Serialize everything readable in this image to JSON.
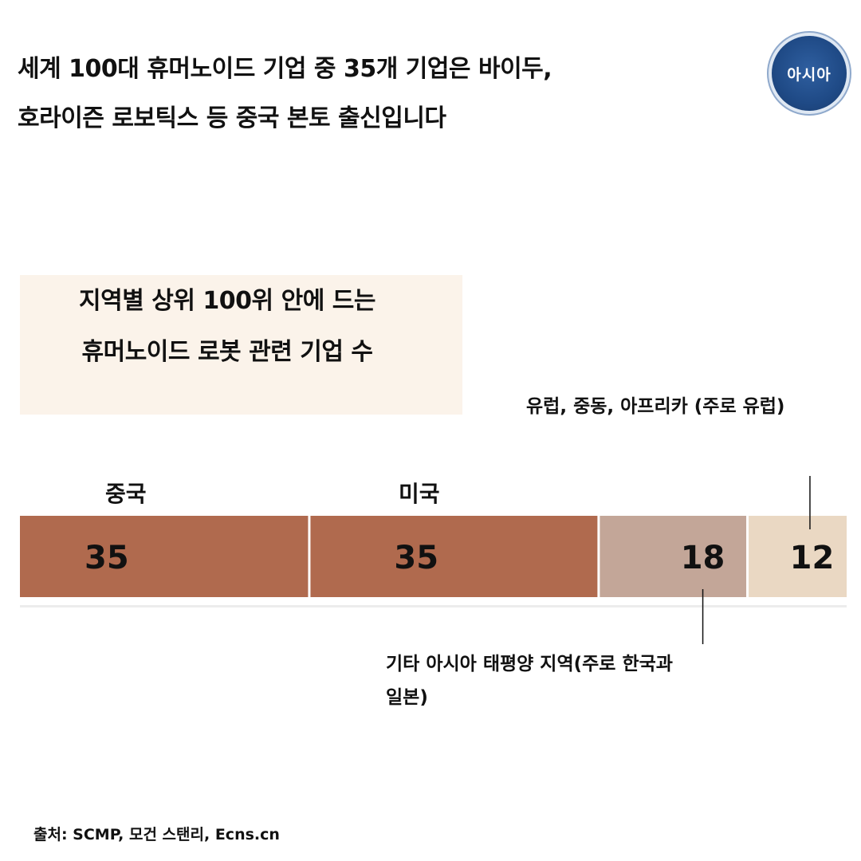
{
  "headline": {
    "line1": "세계 100대 휴머노이드 기업 중 35개 기업은 바이두,",
    "line2": "호라이즌 로보틱스 등 중국 본토 출신입니다"
  },
  "logo": {
    "text": "아시아"
  },
  "chart_data": {
    "type": "bar",
    "orientation": "horizontal-stacked",
    "title_lines": [
      "지역별 상위 100위 안에 드는",
      "휴머노이드 로봇 관련 기업 수"
    ],
    "categories": [
      "중국",
      "미국",
      "기타 아시아 태평양 지역(주로 한국과 일본)",
      "유럽, 중동, 아프리카 (주로 유럽)"
    ],
    "values": [
      35,
      35,
      18,
      12
    ],
    "value_labels": [
      "35",
      "35",
      "18",
      "12"
    ],
    "colors": [
      "#b06a4e",
      "#b06a4e",
      "#c3a698",
      "#ead8c3"
    ],
    "xlim": [
      0,
      100
    ],
    "grid": false,
    "legend": "none"
  },
  "labels": {
    "china": "중국",
    "usa": "미국",
    "asia_pacific_line1": "기타 아시아 태평양 지역(주로 한국과",
    "asia_pacific_line2": "일본)",
    "emea": "유럽, 중동, 아프리카 (주로 유럽)"
  },
  "source": "출처: SCMP, 모건 스탠리, Ecns.cn"
}
